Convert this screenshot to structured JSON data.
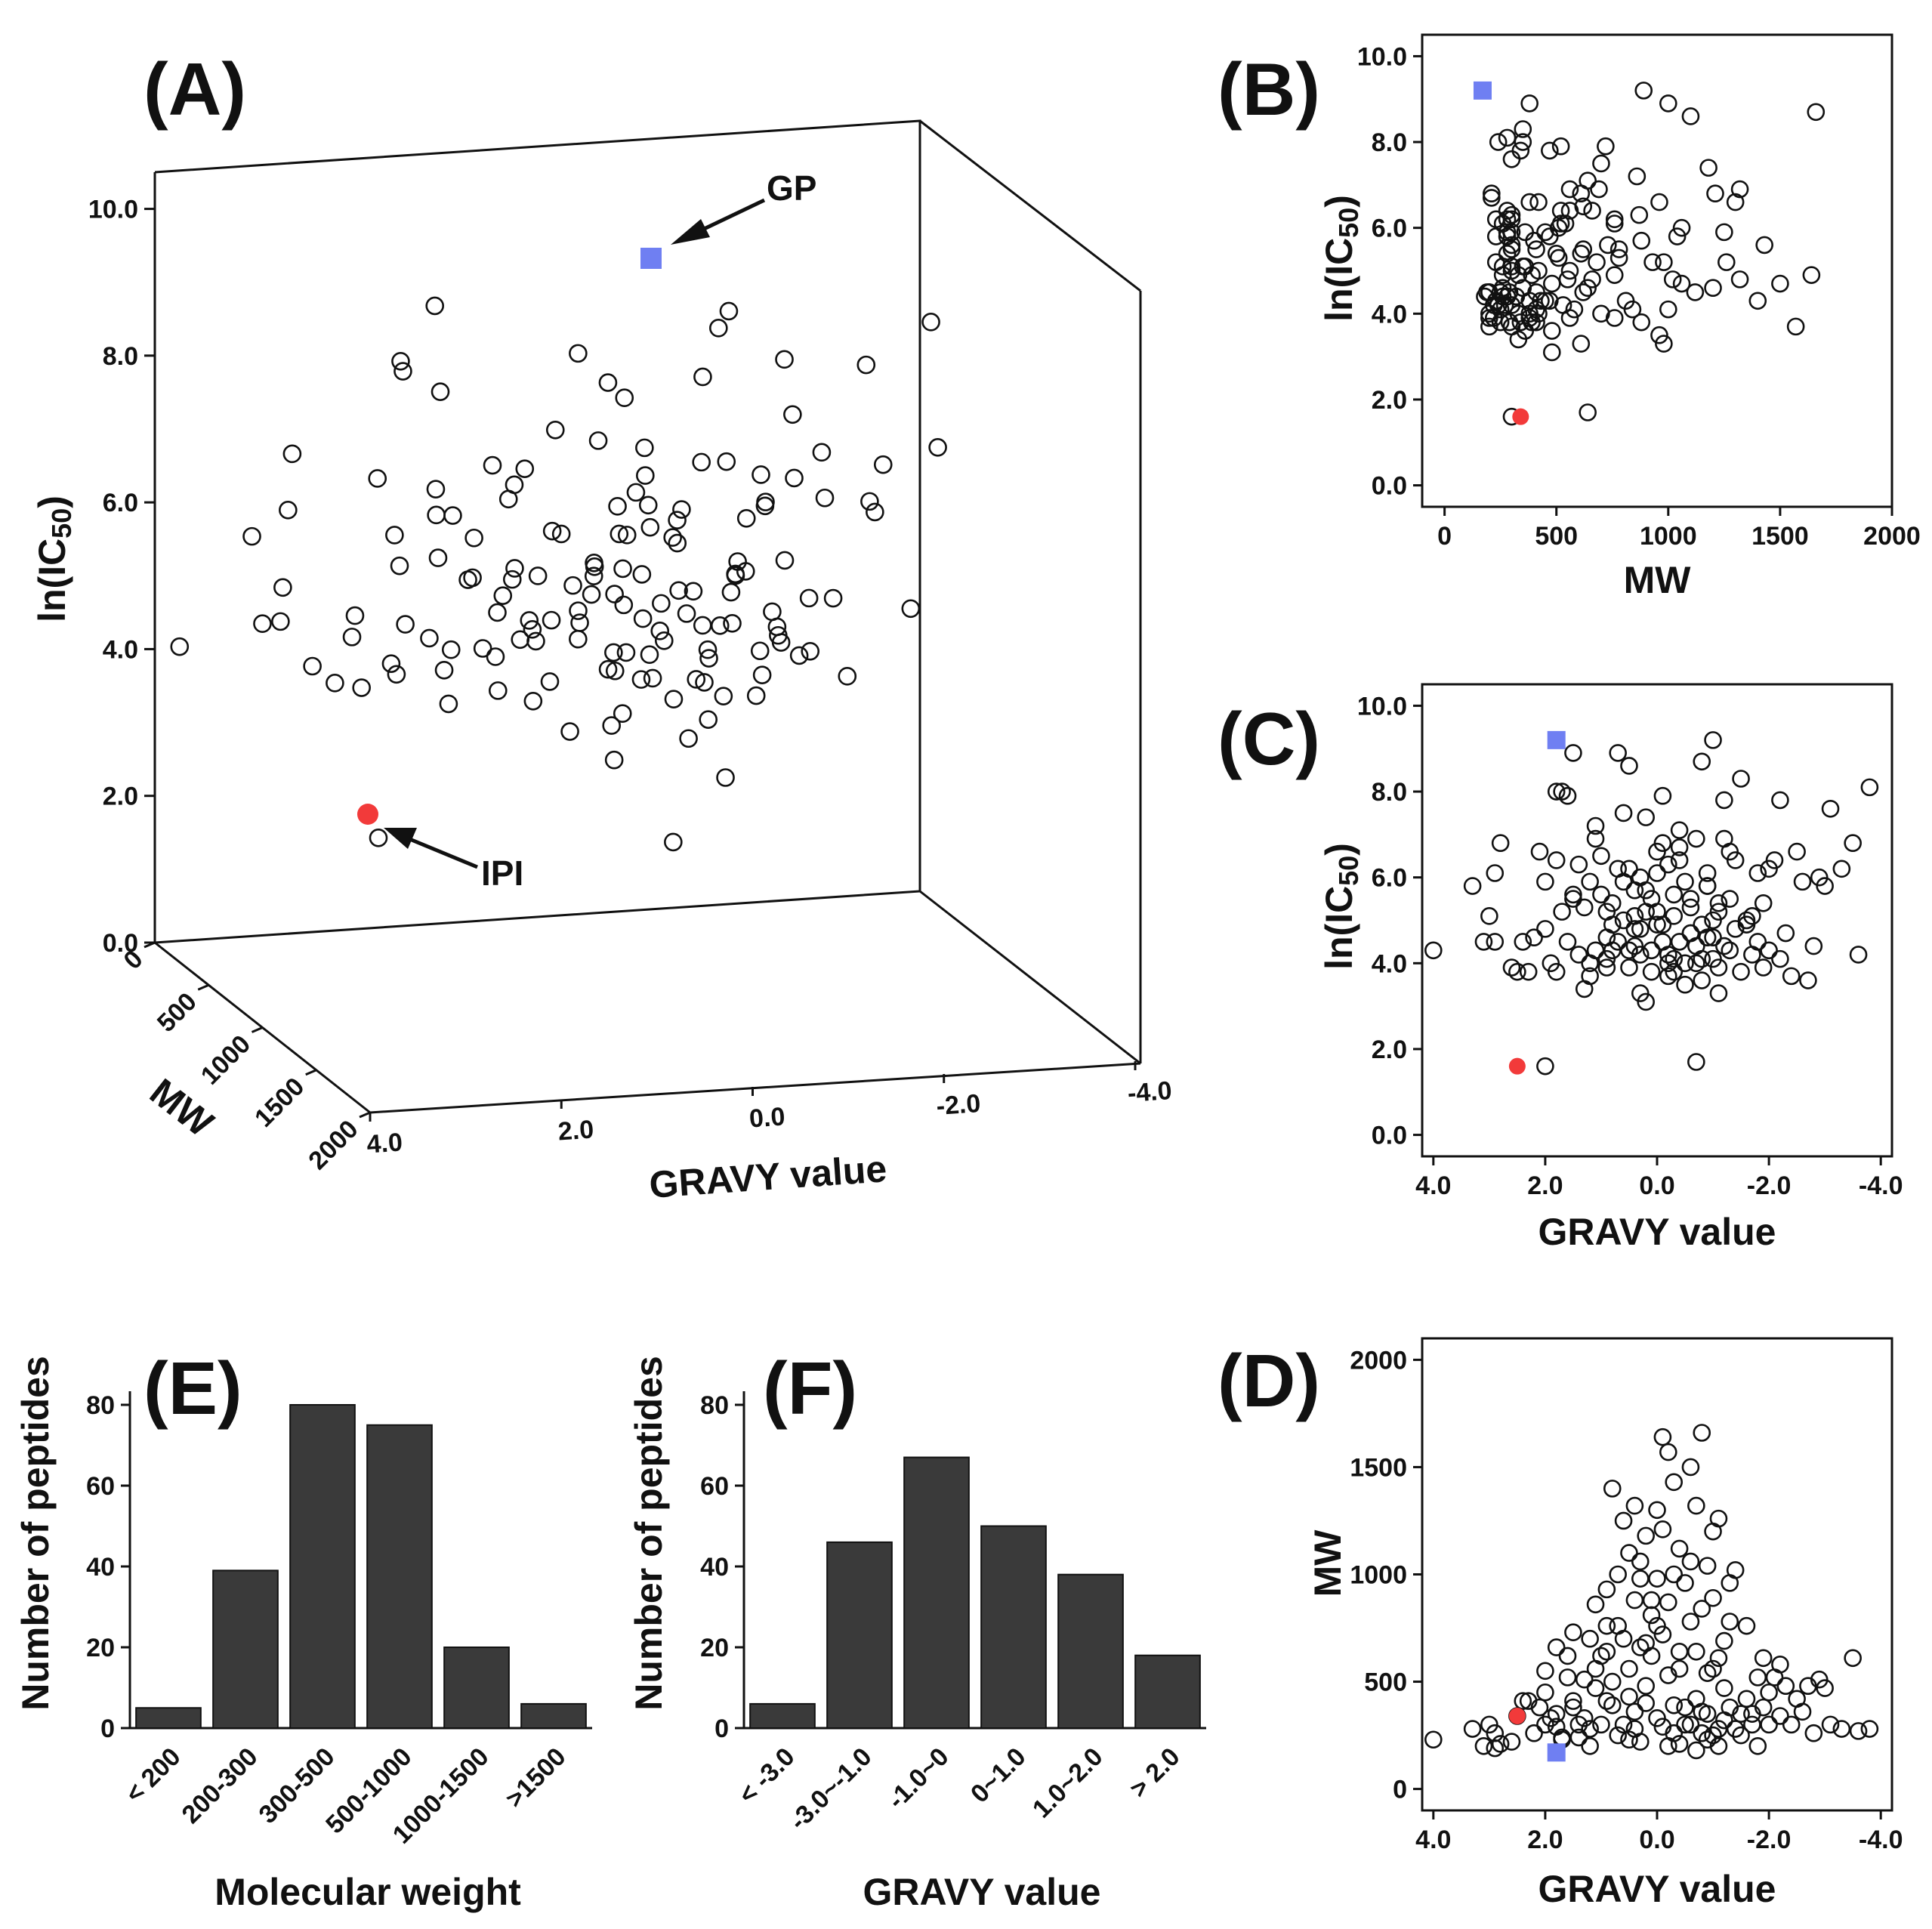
{
  "colors": {
    "ink": "#111111",
    "bar_fill": "#3a3a3a",
    "gp_marker": "#6f7ff2",
    "ipi_marker": "#f23a3a"
  },
  "chart_data": [
    {
      "panel": "(A)",
      "type": "scatter",
      "projection": "3d",
      "title": "",
      "axes": {
        "x": {
          "label": "GRAVY value",
          "range": [
            4.0,
            -4.0
          ],
          "ticks": [
            "4.0",
            "2.0",
            "0.0",
            "-2.0",
            "-4.0"
          ]
        },
        "y": {
          "label": "MW",
          "range": [
            0,
            2000
          ],
          "ticks": [
            "0",
            "500",
            "1000",
            "1500",
            "2000"
          ]
        },
        "z": {
          "label": "ln(IC50)",
          "range": [
            0.0,
            10.0
          ],
          "ticks": [
            "0.0",
            "2.0",
            "4.0",
            "6.0",
            "8.0",
            "10.0"
          ]
        }
      },
      "annotations": [
        {
          "text": "GP",
          "target": "gp",
          "arrow": true
        },
        {
          "text": "IPI",
          "target": "ipi",
          "arrow": true
        }
      ],
      "series_names": [
        "peptides",
        "gp",
        "ipi"
      ],
      "points_source": "shared_peptides"
    },
    {
      "panel": "(B)",
      "type": "scatter",
      "xlabel": "MW",
      "ylabel": "ln(IC50)",
      "xlim": [
        -100,
        2000
      ],
      "ylim": [
        -0.5,
        10.5
      ],
      "xticks": [
        "0",
        "500",
        "1000",
        "1500",
        "2000"
      ],
      "yticks": [
        "0.0",
        "2.0",
        "4.0",
        "6.0",
        "8.0",
        "10.0"
      ],
      "x_field": "mw",
      "y_field": "ic50",
      "points_source": "shared_peptides"
    },
    {
      "panel": "(C)",
      "type": "scatter",
      "xlabel": "GRAVY value",
      "ylabel": "ln(IC50)",
      "xlim": [
        4.2,
        -4.2
      ],
      "ylim": [
        -0.5,
        10.5
      ],
      "xticks": [
        "4.0",
        "2.0",
        "0.0",
        "-2.0",
        "-4.0"
      ],
      "yticks": [
        "0.0",
        "2.0",
        "4.0",
        "6.0",
        "8.0",
        "10.0"
      ],
      "x_field": "gravy",
      "y_field": "ic50",
      "points_source": "shared_peptides"
    },
    {
      "panel": "(D)",
      "type": "scatter",
      "xlabel": "GRAVY value",
      "ylabel": "MW",
      "xlim": [
        4.2,
        -4.2
      ],
      "ylim": [
        -100,
        2100
      ],
      "xticks": [
        "4.0",
        "2.0",
        "0.0",
        "-2.0",
        "-4.0"
      ],
      "yticks": [
        "0",
        "500",
        "1000",
        "1500",
        "2000"
      ],
      "x_field": "gravy",
      "y_field": "mw",
      "points_source": "shared_peptides"
    },
    {
      "panel": "(E)",
      "type": "bar",
      "xlabel": "Molecular weight",
      "ylabel": "Number of peptides",
      "categories": [
        "< 200",
        "200-300",
        "300-500",
        "500-1000",
        "1000-1500",
        ">1500"
      ],
      "values": [
        5,
        39,
        80,
        75,
        20,
        6
      ],
      "ylim": [
        0,
        80
      ],
      "yticks": [
        "0",
        "20",
        "40",
        "60",
        "80"
      ]
    },
    {
      "panel": "(F)",
      "type": "bar",
      "xlabel": "GRAVY value",
      "ylabel": "Number of peptides",
      "categories": [
        "< -3.0",
        "-3.0~-1.0",
        "-1.0~0",
        "0~1.0",
        "1.0~2.0",
        "> 2.0"
      ],
      "values": [
        6,
        46,
        67,
        50,
        38,
        18
      ],
      "ylim": [
        0,
        80
      ],
      "yticks": [
        "0",
        "20",
        "40",
        "60",
        "80"
      ]
    }
  ],
  "shared_peptides": {
    "fields": [
      "gravy",
      "mw",
      "ic50"
    ],
    "special": {
      "gp": {
        "gravy": 1.8,
        "mw": 170,
        "ic50": 9.2
      },
      "ipi": {
        "gravy": 2.5,
        "mw": 340,
        "ic50": 1.6
      }
    },
    "points": [
      [
        2.0,
        300,
        1.6
      ],
      [
        -0.7,
        640,
        1.7
      ],
      [
        4.0,
        230,
        4.3
      ],
      [
        3.3,
        280,
        5.8
      ],
      [
        3.1,
        200,
        4.5
      ],
      [
        2.9,
        260,
        6.1
      ],
      [
        2.8,
        210,
        6.8
      ],
      [
        2.9,
        190,
        4.5
      ],
      [
        3.0,
        300,
        5.1
      ],
      [
        2.5,
        340,
        3.8
      ],
      [
        2.3,
        410,
        3.8
      ],
      [
        2.1,
        380,
        6.6
      ],
      [
        2.0,
        450,
        5.9
      ],
      [
        2.2,
        260,
        4.6
      ],
      [
        1.9,
        330,
        4.0
      ],
      [
        1.8,
        290,
        3.8
      ],
      [
        1.8,
        350,
        8.0
      ],
      [
        1.7,
        240,
        8.0
      ],
      [
        1.5,
        380,
        8.9
      ],
      [
        1.6,
        520,
        7.9
      ],
      [
        1.4,
        300,
        6.3
      ],
      [
        1.5,
        410,
        5.5
      ],
      [
        1.3,
        330,
        3.4
      ],
      [
        1.2,
        700,
        4.0
      ],
      [
        1.1,
        470,
        4.3
      ],
      [
        1.2,
        280,
        5.9
      ],
      [
        1.0,
        620,
        6.5
      ],
      [
        1.1,
        860,
        7.2
      ],
      [
        0.9,
        930,
        5.2
      ],
      [
        0.9,
        640,
        4.6
      ],
      [
        0.8,
        390,
        4.9
      ],
      [
        0.8,
        500,
        5.4
      ],
      [
        0.7,
        760,
        6.2
      ],
      [
        0.7,
        1000,
        8.9
      ],
      [
        0.6,
        700,
        7.5
      ],
      [
        0.5,
        1100,
        8.6
      ],
      [
        0.5,
        560,
        3.9
      ],
      [
        0.5,
        430,
        4.3
      ],
      [
        0.4,
        880,
        5.7
      ],
      [
        0.4,
        360,
        5.1
      ],
      [
        0.3,
        660,
        4.8
      ],
      [
        0.3,
        1060,
        6.0
      ],
      [
        0.2,
        1180,
        7.4
      ],
      [
        0.2,
        480,
        3.1
      ],
      [
        0.1,
        620,
        5.5
      ],
      [
        0.1,
        810,
        4.3
      ],
      [
        0.0,
        1300,
        6.6
      ],
      [
        0.0,
        980,
        5.2
      ],
      [
        -0.1,
        1640,
        4.9
      ],
      [
        -0.1,
        720,
        7.9
      ],
      [
        -0.2,
        530,
        4.2
      ],
      [
        -0.2,
        870,
        6.3
      ],
      [
        -0.3,
        1430,
        5.6
      ],
      [
        -0.3,
        390,
        3.8
      ],
      [
        -0.4,
        1120,
        4.5
      ],
      [
        -0.4,
        640,
        7.1
      ],
      [
        -0.5,
        300,
        5.9
      ],
      [
        -0.5,
        960,
        3.5
      ],
      [
        -0.6,
        1500,
        4.7
      ],
      [
        -0.6,
        780,
        5.3
      ],
      [
        -0.7,
        1320,
        6.9
      ],
      [
        -0.7,
        420,
        4.0
      ],
      [
        -0.8,
        1660,
        8.7
      ],
      [
        -0.8,
        360,
        3.6
      ],
      [
        -0.9,
        1040,
        5.8
      ],
      [
        -0.9,
        540,
        6.1
      ],
      [
        -1.0,
        1200,
        4.6
      ],
      [
        -1.0,
        250,
        4.1
      ],
      [
        -1.0,
        890,
        9.2
      ],
      [
        -1.1,
        610,
        3.3
      ],
      [
        -1.1,
        1260,
        5.2
      ],
      [
        -1.2,
        470,
        7.8
      ],
      [
        -1.2,
        320,
        4.4
      ],
      [
        -1.3,
        780,
        5.5
      ],
      [
        -1.4,
        280,
        6.4
      ],
      [
        -1.4,
        1020,
        4.8
      ],
      [
        -1.5,
        350,
        8.3
      ],
      [
        -1.6,
        420,
        5.0
      ],
      [
        -1.7,
        300,
        4.2
      ],
      [
        -1.8,
        520,
        6.1
      ],
      [
        -1.9,
        380,
        3.9
      ],
      [
        -2.0,
        450,
        4.3
      ],
      [
        -2.0,
        300,
        6.2
      ],
      [
        -2.1,
        520,
        6.4
      ],
      [
        -2.2,
        340,
        7.8
      ],
      [
        -2.3,
        480,
        4.7
      ],
      [
        -2.4,
        300,
        3.7
      ],
      [
        -2.5,
        420,
        6.6
      ],
      [
        -2.6,
        360,
        5.9
      ],
      [
        -2.7,
        480,
        3.6
      ],
      [
        -2.8,
        260,
        4.4
      ],
      [
        -2.9,
        510,
        6.0
      ],
      [
        -3.0,
        470,
        5.8
      ],
      [
        -3.1,
        300,
        7.6
      ],
      [
        -3.3,
        280,
        6.2
      ],
      [
        -3.5,
        610,
        6.8
      ],
      [
        -3.6,
        270,
        4.2
      ],
      [
        -3.8,
        280,
        8.1
      ],
      [
        1.6,
        620,
        4.5
      ],
      [
        1.4,
        240,
        4.2
      ],
      [
        1.3,
        510,
        5.3
      ],
      [
        1.0,
        300,
        5.6
      ],
      [
        0.9,
        410,
        4.1
      ],
      [
        0.6,
        300,
        5.0
      ],
      [
        0.4,
        280,
        4.4
      ],
      [
        0.2,
        400,
        5.7
      ],
      [
        0.0,
        330,
        4.9
      ],
      [
        -0.1,
        290,
        4.5
      ],
      [
        -0.3,
        260,
        5.1
      ],
      [
        -0.5,
        380,
        4.0
      ],
      [
        -0.6,
        300,
        5.5
      ],
      [
        -0.8,
        260,
        4.9
      ],
      [
        -0.9,
        350,
        4.6
      ],
      [
        -1.1,
        280,
        5.4
      ],
      [
        -1.3,
        380,
        4.3
      ],
      [
        -1.5,
        250,
        3.8
      ],
      [
        -1.7,
        350,
        5.1
      ],
      [
        -1.8,
        200,
        4.5
      ],
      [
        0.7,
        250,
        4.5
      ],
      [
        0.3,
        220,
        4.2
      ],
      [
        -0.2,
        200,
        4.0
      ],
      [
        -0.7,
        180,
        4.4
      ],
      [
        -1.1,
        200,
        3.9
      ],
      [
        1.2,
        200,
        3.7
      ],
      [
        0.5,
        230,
        6.2
      ],
      [
        -0.4,
        210,
        6.7
      ],
      [
        -0.9,
        230,
        5.8
      ],
      [
        1.7,
        230,
        5.2
      ],
      [
        2.4,
        410,
        4.5
      ],
      [
        2.6,
        220,
        3.9
      ],
      [
        0.8,
        1400,
        4.3
      ],
      [
        0.6,
        1250,
        5.9
      ],
      [
        -0.2,
        1570,
        3.7
      ],
      [
        -0.1,
        1210,
        6.8
      ],
      [
        0.4,
        1320,
        4.8
      ],
      [
        -0.6,
        1060,
        4.7
      ],
      [
        0.3,
        980,
        3.3
      ],
      [
        -0.3,
        1000,
        4.1
      ],
      [
        -1.3,
        960,
        6.6
      ],
      [
        1.5,
        730,
        5.6
      ],
      [
        1.8,
        660,
        6.4
      ],
      [
        2.0,
        550,
        4.8
      ],
      [
        0.9,
        760,
        3.9
      ],
      [
        -1.6,
        760,
        4.9
      ],
      [
        -1.9,
        610,
        5.4
      ],
      [
        -2.2,
        580,
        4.1
      ],
      [
        1.1,
        560,
        6.9
      ],
      [
        0.1,
        880,
        3.8
      ],
      [
        -1.2,
        690,
        6.9
      ],
      [
        -0.8,
        840,
        4.1
      ],
      [
        0.0,
        760,
        6.1
      ],
      [
        -0.4,
        560,
        6.4
      ],
      [
        0.2,
        680,
        5.2
      ],
      [
        -1.0,
        560,
        5.0
      ]
    ]
  }
}
